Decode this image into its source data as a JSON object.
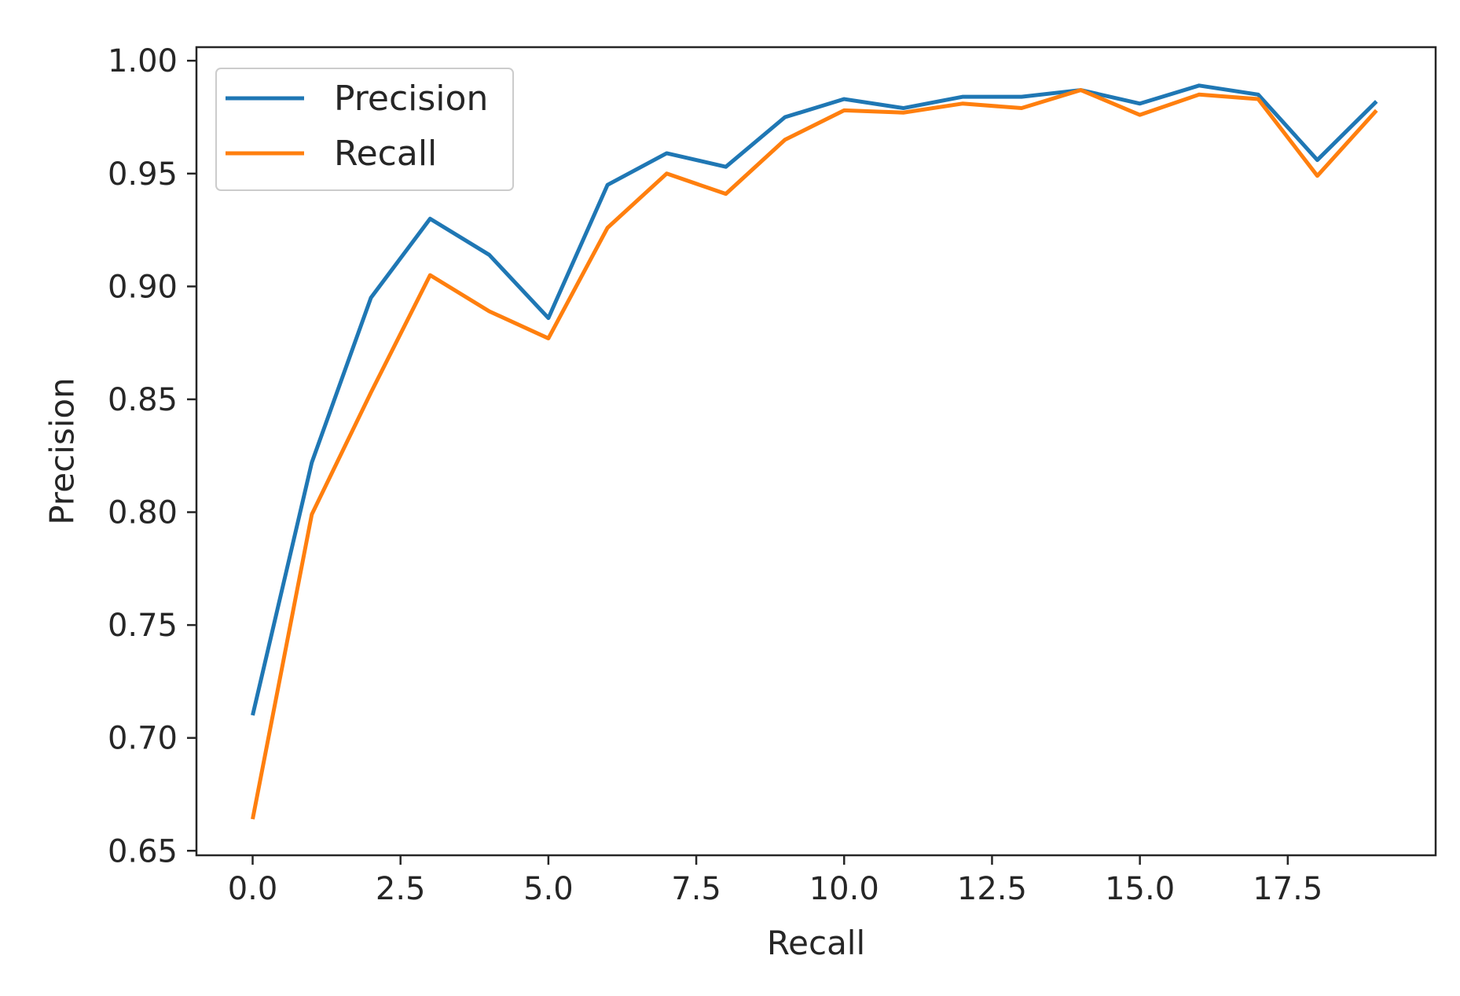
{
  "chart_data": {
    "type": "line",
    "title": "",
    "xlabel": "Recall",
    "ylabel": "Precision",
    "xlim": [
      -0.95,
      20.0
    ],
    "ylim": [
      0.648,
      1.006
    ],
    "xticks": [
      0.0,
      2.5,
      5.0,
      7.5,
      10.0,
      12.5,
      15.0,
      17.5
    ],
    "xtick_labels": [
      "0.0",
      "2.5",
      "5.0",
      "7.5",
      "10.0",
      "12.5",
      "15.0",
      "17.5"
    ],
    "yticks": [
      0.65,
      0.7,
      0.75,
      0.8,
      0.85,
      0.9,
      0.95,
      1.0
    ],
    "ytick_labels": [
      "0.65",
      "0.70",
      "0.75",
      "0.80",
      "0.85",
      "0.90",
      "0.95",
      "1.00"
    ],
    "grid": false,
    "legend_position": "top-left",
    "x": [
      0,
      1,
      2,
      3,
      4,
      5,
      6,
      7,
      8,
      9,
      10,
      11,
      12,
      13,
      14,
      15,
      16,
      17,
      18,
      19
    ],
    "series": [
      {
        "name": "Precision",
        "color": "#1f77b4",
        "values": [
          0.71,
          0.822,
          0.895,
          0.93,
          0.914,
          0.886,
          0.945,
          0.959,
          0.953,
          0.975,
          0.983,
          0.979,
          0.984,
          0.984,
          0.987,
          0.981,
          0.989,
          0.985,
          0.956,
          0.982
        ]
      },
      {
        "name": "Recall",
        "color": "#ff7f0e",
        "values": [
          0.664,
          0.799,
          0.853,
          0.905,
          0.889,
          0.877,
          0.926,
          0.95,
          0.941,
          0.965,
          0.978,
          0.977,
          0.981,
          0.979,
          0.987,
          0.976,
          0.985,
          0.983,
          0.949,
          0.978
        ]
      }
    ]
  }
}
